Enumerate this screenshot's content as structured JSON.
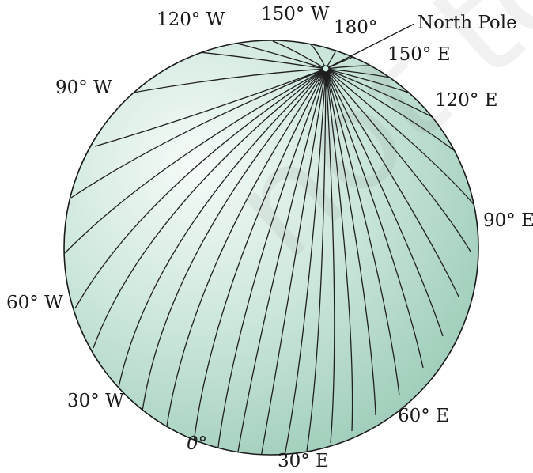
{
  "labels": {
    "w120": "120° W",
    "w150": "150° W",
    "deg180": "180°",
    "north_pole": "North Pole",
    "e150": "150° E",
    "w90": "90° W",
    "e120": "120° E",
    "e90": "90° E",
    "w60": "60° W",
    "w30": "30° W",
    "e60": "60° E",
    "deg0": "0°",
    "e30": "30° E"
  },
  "watermark": "not to be",
  "colors": {
    "globe_light": "#f1f8f4",
    "globe_mid": "#bfe0d2",
    "globe_dark": "#8fc4ad",
    "meridian": "#1f1f1f",
    "outline": "#1a1a1a"
  }
}
